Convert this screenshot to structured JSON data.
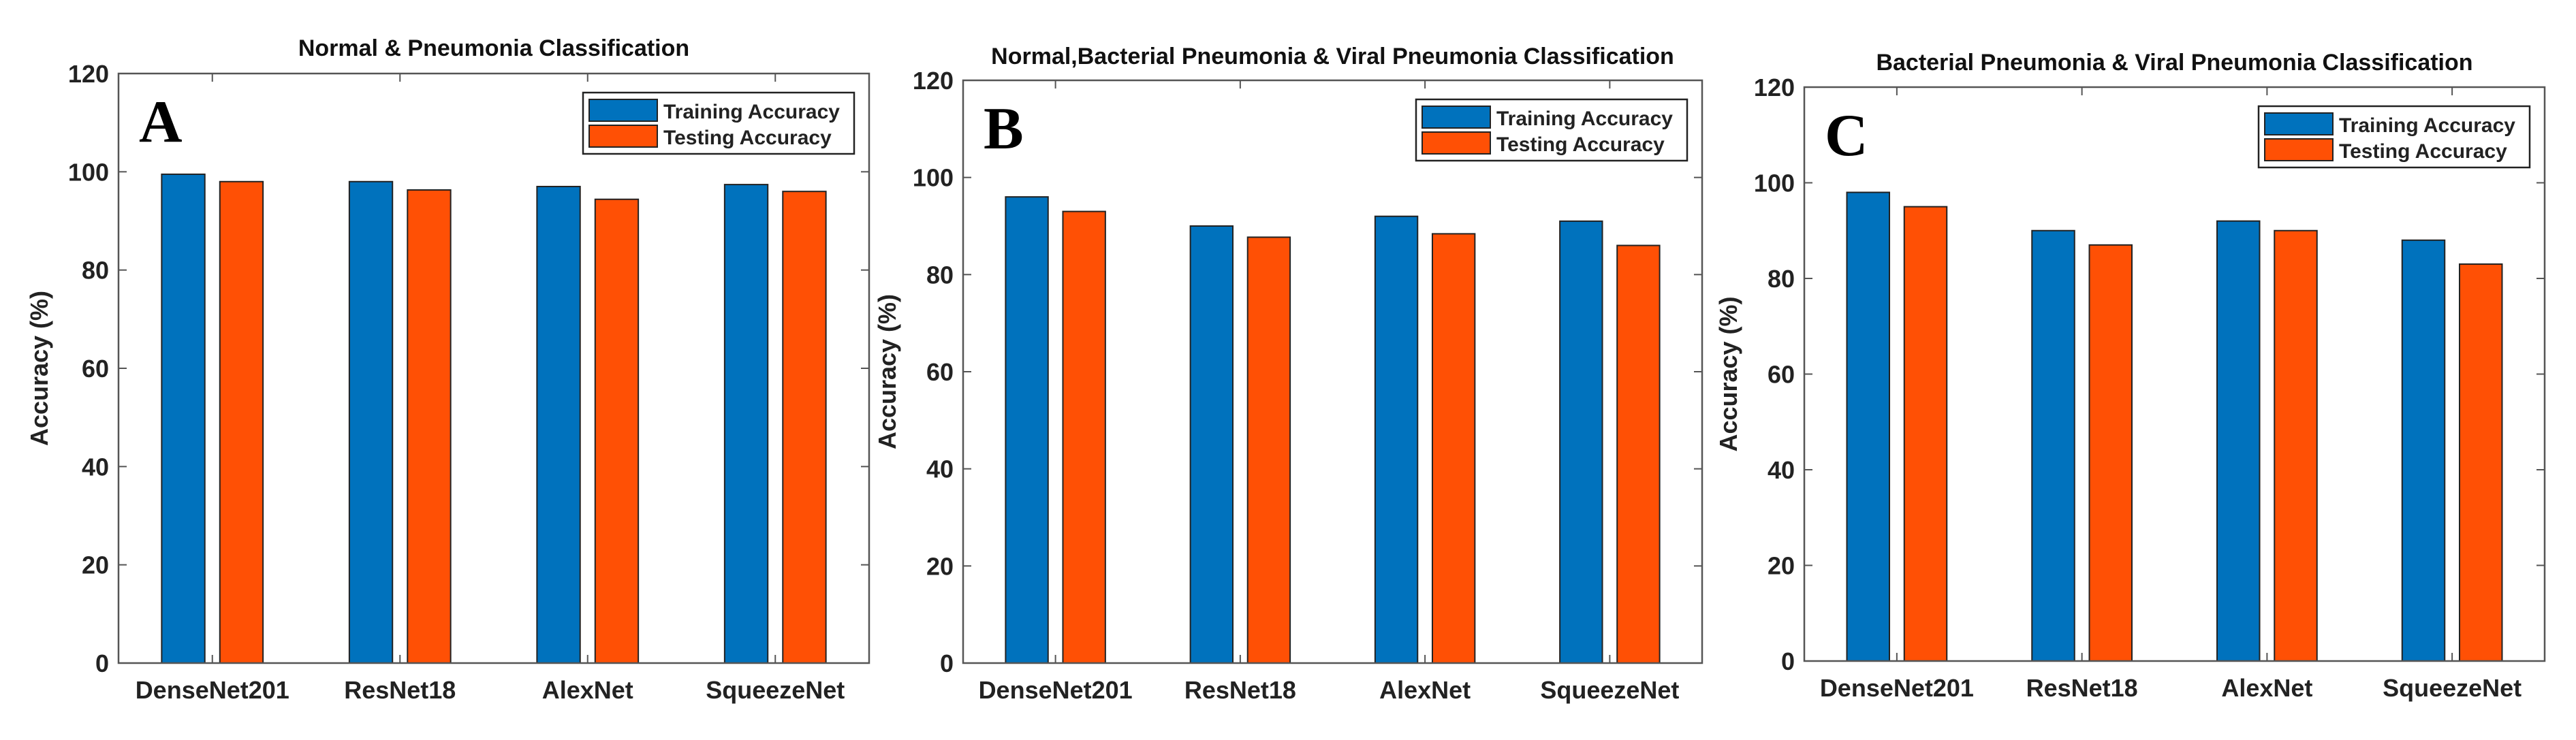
{
  "chart_data": [
    {
      "type": "bar",
      "panel_label": "A",
      "title": "Normal & Pneumonia Classification",
      "xlabel": "",
      "ylabel": "Accuracy (%)",
      "ylim": [
        0,
        120
      ],
      "yticks": [
        0,
        20,
        40,
        60,
        80,
        100,
        120
      ],
      "categories": [
        "DenseNet201",
        "ResNet18",
        "AlexNet",
        "SqueezeNet"
      ],
      "legend_position": "top-right",
      "grid": false,
      "series": [
        {
          "name": "Training Accuracy",
          "color": "#0072BD",
          "values": [
            99.5,
            98,
            97,
            97.4
          ]
        },
        {
          "name": "Testing Accuracy",
          "color": "#FF5005",
          "values": [
            98,
            96.3,
            94.4,
            96
          ]
        }
      ]
    },
    {
      "type": "bar",
      "panel_label": "B",
      "title": "Normal,Bacterial Pneumonia & Viral Pneumonia Classification",
      "xlabel": "",
      "ylabel": "Accuracy (%)",
      "ylim": [
        0,
        120
      ],
      "yticks": [
        0,
        20,
        40,
        60,
        80,
        100,
        120
      ],
      "categories": [
        "DenseNet201",
        "ResNet18",
        "AlexNet",
        "SqueezeNet"
      ],
      "legend_position": "top-right",
      "grid": false,
      "series": [
        {
          "name": "Training Accuracy",
          "color": "#0072BD",
          "values": [
            96,
            90,
            92,
            91
          ]
        },
        {
          "name": "Testing Accuracy",
          "color": "#FF5005",
          "values": [
            93,
            87.7,
            88.4,
            86
          ]
        }
      ]
    },
    {
      "type": "bar",
      "panel_label": "C",
      "title": "Bacterial Pneumonia & Viral Pneumonia Classification",
      "xlabel": "",
      "ylabel": "Accuracy (%)",
      "ylim": [
        0,
        120
      ],
      "yticks": [
        0,
        20,
        40,
        60,
        80,
        100,
        120
      ],
      "categories": [
        "DenseNet201",
        "ResNet18",
        "AlexNet",
        "SqueezeNet"
      ],
      "legend_position": "top-right",
      "grid": false,
      "series": [
        {
          "name": "Training Accuracy",
          "color": "#0072BD",
          "values": [
            98,
            90,
            92,
            88
          ]
        },
        {
          "name": "Testing Accuracy",
          "color": "#FF5005",
          "values": [
            95,
            87,
            90,
            83
          ]
        }
      ]
    }
  ]
}
